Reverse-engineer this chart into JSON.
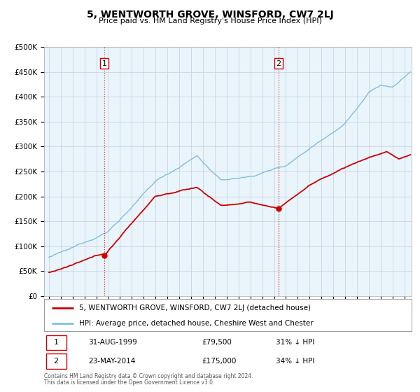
{
  "title": "5, WENTWORTH GROVE, WINSFORD, CW7 2LJ",
  "subtitle": "Price paid vs. HM Land Registry's House Price Index (HPI)",
  "ylabel_ticks": [
    "£0",
    "£50K",
    "£100K",
    "£150K",
    "£200K",
    "£250K",
    "£300K",
    "£350K",
    "£400K",
    "£450K",
    "£500K"
  ],
  "ytick_vals": [
    0,
    50000,
    100000,
    150000,
    200000,
    250000,
    300000,
    350000,
    400000,
    450000,
    500000
  ],
  "ylim": [
    0,
    500000
  ],
  "hpi_color": "#7fbfdf",
  "price_color": "#cc0000",
  "ann1_year": 1999.67,
  "ann1_price": 79500,
  "ann1_text": "31-AUG-1999",
  "ann1_amount": "£79,500",
  "ann1_pct": "31% ↓ HPI",
  "ann2_year": 2014.39,
  "ann2_price": 175000,
  "ann2_text": "23-MAY-2014",
  "ann2_amount": "£175,000",
  "ann2_pct": "34% ↓ HPI",
  "legend_line1": "5, WENTWORTH GROVE, WINSFORD, CW7 2LJ (detached house)",
  "legend_line2": "HPI: Average price, detached house, Cheshire West and Chester",
  "footer1": "Contains HM Land Registry data © Crown copyright and database right 2024.",
  "footer2": "This data is licensed under the Open Government Licence v3.0.",
  "bg_color": "#ffffff",
  "plot_bg": "#eaf4fb",
  "grid_color": "#c0d0e0"
}
